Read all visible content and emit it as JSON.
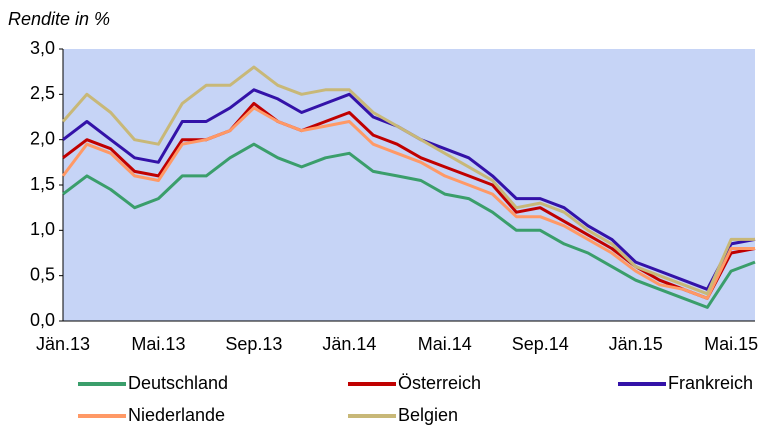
{
  "chart_data": {
    "type": "line",
    "title": "Rendite in %",
    "categories": [
      "Jän.13",
      null,
      null,
      null,
      "Mai.13",
      null,
      null,
      null,
      "Sep.13",
      null,
      null,
      null,
      "Jän.14",
      null,
      null,
      null,
      "Mai.14",
      null,
      null,
      null,
      "Sep.14",
      null,
      null,
      null,
      "Jän.15",
      null,
      null,
      null,
      "Mai.15",
      null
    ],
    "series": [
      {
        "name": "Deutschland",
        "color": "#3a9e6b",
        "values": [
          1.4,
          1.6,
          1.45,
          1.25,
          1.35,
          1.6,
          1.6,
          1.8,
          1.95,
          1.8,
          1.7,
          1.8,
          1.85,
          1.65,
          1.6,
          1.55,
          1.4,
          1.35,
          1.2,
          1.0,
          1.0,
          0.85,
          0.75,
          0.6,
          0.45,
          0.35,
          0.25,
          0.15,
          0.55,
          0.65
        ]
      },
      {
        "name": "Österreich",
        "color": "#c00000",
        "values": [
          1.8,
          2.0,
          1.9,
          1.65,
          1.6,
          2.0,
          2.0,
          2.1,
          2.4,
          2.2,
          2.1,
          2.2,
          2.3,
          2.05,
          1.95,
          1.8,
          1.7,
          1.6,
          1.5,
          1.2,
          1.25,
          1.1,
          0.95,
          0.8,
          0.6,
          0.45,
          0.35,
          0.25,
          0.75,
          0.8
        ]
      },
      {
        "name": "Frankreich",
        "color": "#3312a8",
        "values": [
          2.0,
          2.2,
          2.0,
          1.8,
          1.75,
          2.2,
          2.2,
          2.35,
          2.55,
          2.45,
          2.3,
          2.4,
          2.5,
          2.25,
          2.15,
          2.0,
          1.9,
          1.8,
          1.6,
          1.35,
          1.35,
          1.25,
          1.05,
          0.9,
          0.65,
          0.55,
          0.45,
          0.35,
          0.85,
          0.9
        ]
      },
      {
        "name": "Niederlande",
        "color": "#ff9966",
        "values": [
          1.6,
          1.95,
          1.85,
          1.6,
          1.55,
          1.95,
          2.0,
          2.1,
          2.35,
          2.2,
          2.1,
          2.15,
          2.2,
          1.95,
          1.85,
          1.75,
          1.6,
          1.5,
          1.4,
          1.15,
          1.15,
          1.05,
          0.9,
          0.75,
          0.55,
          0.4,
          0.35,
          0.25,
          0.8,
          0.8
        ]
      },
      {
        "name": "Belgien",
        "color": "#c8b878",
        "values": [
          2.2,
          2.5,
          2.3,
          2.0,
          1.95,
          2.4,
          2.6,
          2.6,
          2.8,
          2.6,
          2.5,
          2.55,
          2.55,
          2.3,
          2.15,
          2.0,
          1.85,
          1.7,
          1.55,
          1.25,
          1.3,
          1.2,
          1.0,
          0.85,
          0.6,
          0.5,
          0.4,
          0.3,
          0.9,
          0.9
        ]
      }
    ],
    "ylim": [
      0,
      3
    ],
    "yticks": [
      {
        "value": 0,
        "label": "0,0"
      },
      {
        "value": 0.5,
        "label": "0,5"
      },
      {
        "value": 1,
        "label": "1,0"
      },
      {
        "value": 1.5,
        "label": "1,5"
      },
      {
        "value": 2,
        "label": "2,0"
      },
      {
        "value": 2.5,
        "label": "2,5"
      },
      {
        "value": 3,
        "label": "3,0"
      }
    ],
    "plot_background": "#c6d4f6",
    "legend": "bottom"
  }
}
